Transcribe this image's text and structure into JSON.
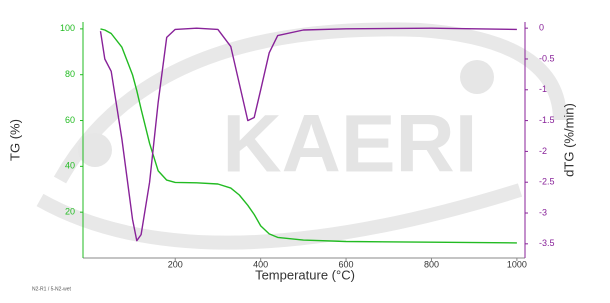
{
  "chart_data": {
    "type": "line",
    "watermark": "KAERI",
    "footnote": "N2-R1 / 5-N2-wet",
    "xlabel": "Temperature (°C)",
    "ylabel": "TG (%)",
    "y2label": "dTG (%/min)",
    "x": [
      25,
      35,
      50,
      75,
      100,
      110,
      120,
      140,
      160,
      180,
      200,
      250,
      300,
      330,
      350,
      370,
      385,
      400,
      420,
      440,
      500,
      600,
      800,
      1000
    ],
    "series": [
      {
        "name": "TG",
        "color": "#22bb22",
        "axis": "y",
        "values": [
          100,
          99.5,
          98,
          92,
          80,
          73,
          65,
          50,
          38,
          34,
          33,
          32.8,
          32.3,
          30.5,
          27.5,
          23,
          19,
          14,
          10.5,
          9,
          7.8,
          7.2,
          6.9,
          6.6
        ]
      },
      {
        "name": "dTG",
        "color": "#882299",
        "axis": "y2",
        "values": [
          -0.05,
          -0.5,
          -0.7,
          -1.8,
          -3.1,
          -3.45,
          -3.35,
          -2.5,
          -1.2,
          -0.15,
          -0.02,
          0,
          -0.02,
          -0.3,
          -0.9,
          -1.5,
          -1.45,
          -1.0,
          -0.4,
          -0.12,
          -0.03,
          -0.01,
          0,
          -0.02
        ]
      }
    ],
    "xlim": [
      -16,
      1019
    ],
    "xticks": [
      200,
      400,
      600,
      800,
      1000
    ],
    "ylim": [
      0,
      103
    ],
    "yticks": [
      20,
      40,
      60,
      80,
      100
    ],
    "y2lim": [
      -3.73,
      0.1
    ],
    "y2ticks": [
      -3.5,
      -3,
      -2.5,
      -2,
      -1.5,
      -1,
      -0.5,
      0
    ]
  }
}
